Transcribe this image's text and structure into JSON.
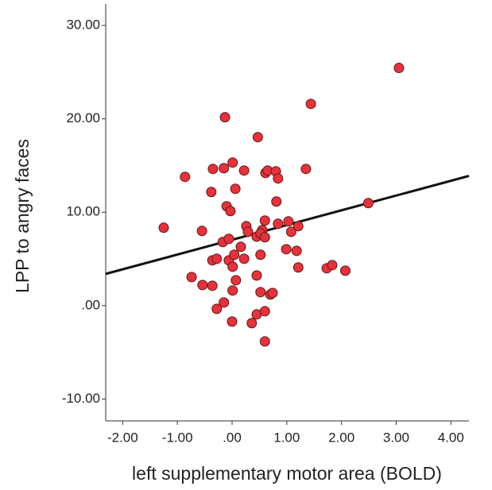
{
  "chart_data": {
    "type": "scatter",
    "x_label": "left supplementary motor area (BOLD)",
    "y_label": "LPP to angry faces",
    "xlim": [
      -2.31,
      4.33
    ],
    "ylim": [
      -12.34,
      32.3
    ],
    "xticks": [
      {
        "value": -2,
        "label": "-2.00"
      },
      {
        "value": -1,
        "label": "-1.00"
      },
      {
        "value": 0,
        "label": ".00"
      },
      {
        "value": 1,
        "label": "1.00"
      },
      {
        "value": 2,
        "label": "2.00"
      },
      {
        "value": 3,
        "label": "3.00"
      },
      {
        "value": 4,
        "label": "4.00"
      }
    ],
    "yticks": [
      {
        "value": -10,
        "label": "-10.00"
      },
      {
        "value": 0,
        "label": ".00"
      },
      {
        "value": 10,
        "label": "10.00"
      },
      {
        "value": 20,
        "label": "20.00"
      },
      {
        "value": 30,
        "label": "30.00"
      }
    ],
    "color": "#e8313a",
    "fit_line": {
      "intercept": 7.05,
      "slope": 1.58,
      "color": "#111111"
    },
    "x": [
      3.05,
      1.44,
      -0.13,
      0.47,
      -0.86,
      -0.35,
      -0.15,
      0.01,
      0.22,
      0.61,
      0.65,
      0.8,
      0.84,
      1.35,
      -0.38,
      0.06,
      -0.1,
      -0.03,
      0.81,
      2.49,
      -1.25,
      -0.55,
      0.26,
      0.29,
      0.55,
      0.6,
      0.84,
      1.03,
      1.08,
      1.21,
      -0.17,
      -0.06,
      0.16,
      0.45,
      0.52,
      0.6,
      -0.36,
      -0.28,
      -0.06,
      0.04,
      0.22,
      0.01,
      0.52,
      0.99,
      1.18,
      1.21,
      1.73,
      1.83,
      2.07,
      -0.74,
      -0.54,
      -0.36,
      0.07,
      0.45,
      0.01,
      0.52,
      0.7,
      0.74,
      -0.15,
      -0.28,
      0.0,
      0.36,
      0.45,
      0.6,
      0.6
    ],
    "y": [
      25.45,
      21.6,
      20.17,
      18.04,
      13.79,
      14.64,
      14.72,
      15.32,
      14.47,
      14.21,
      14.47,
      14.38,
      13.62,
      14.64,
      12.17,
      12.51,
      10.64,
      10.13,
      11.15,
      10.98,
      8.34,
      8.0,
      8.51,
      7.91,
      8.09,
      9.11,
      8.77,
      9.02,
      7.91,
      8.51,
      6.81,
      7.15,
      6.3,
      7.4,
      7.74,
      7.32,
      4.85,
      5.02,
      4.85,
      5.45,
      5.02,
      4.17,
      5.45,
      6.04,
      5.87,
      4.09,
      4.0,
      4.34,
      3.74,
      3.06,
      2.21,
      2.13,
      2.72,
      3.23,
      1.62,
      1.45,
      1.19,
      1.36,
      0.34,
      -0.34,
      -1.7,
      -1.87,
      -0.94,
      -0.6,
      -3.83
    ]
  }
}
